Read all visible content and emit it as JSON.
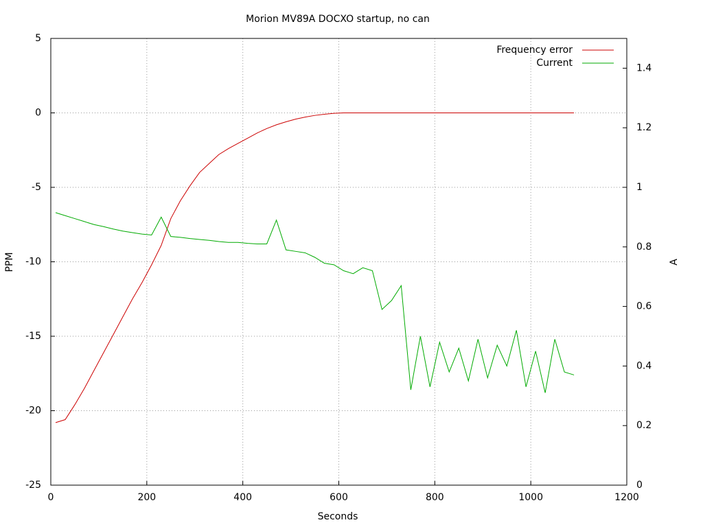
{
  "chart_data": {
    "type": "line",
    "title": "Morion MV89A DOCXO startup, no can",
    "x_label": "Seconds",
    "y_label": "PPM",
    "y2_label": "A",
    "x": [
      10,
      30,
      50,
      70,
      90,
      110,
      130,
      150,
      170,
      190,
      210,
      230,
      250,
      270,
      290,
      310,
      330,
      350,
      370,
      390,
      410,
      430,
      450,
      470,
      490,
      510,
      530,
      550,
      570,
      590,
      610,
      630,
      650,
      670,
      690,
      710,
      730,
      750,
      770,
      790,
      810,
      830,
      850,
      870,
      890,
      910,
      930,
      950,
      970,
      990,
      1010,
      1030,
      1050,
      1070,
      1090
    ],
    "series": [
      {
        "name": "Frequency error",
        "color": "#cc0000",
        "axis": "y",
        "values": [
          -20.8,
          -20.6,
          -19.6,
          -18.5,
          -17.3,
          -16.1,
          -14.9,
          -13.7,
          -12.5,
          -11.4,
          -10.2,
          -8.9,
          -7.1,
          -5.9,
          -4.9,
          -4.0,
          -3.4,
          -2.8,
          -2.4,
          -2.05,
          -1.7,
          -1.35,
          -1.05,
          -0.8,
          -0.6,
          -0.42,
          -0.28,
          -0.17,
          -0.09,
          -0.03,
          0,
          0,
          0,
          0,
          0,
          0,
          0,
          0,
          0,
          0,
          0,
          0,
          0,
          0,
          0,
          0,
          0,
          0,
          0,
          0,
          0,
          0,
          0,
          0,
          0
        ]
      },
      {
        "name": "Current",
        "color": "#00aa00",
        "axis": "y2",
        "values": [
          0.915,
          0.905,
          0.895,
          0.885,
          0.875,
          0.868,
          0.86,
          0.853,
          0.848,
          0.843,
          0.84,
          0.9,
          0.835,
          0.832,
          0.828,
          0.825,
          0.822,
          0.818,
          0.815,
          0.815,
          0.812,
          0.81,
          0.81,
          0.89,
          0.79,
          0.785,
          0.78,
          0.765,
          0.745,
          0.74,
          0.72,
          0.71,
          0.73,
          0.72,
          0.59,
          0.62,
          0.67,
          0.32,
          0.5,
          0.33,
          0.48,
          0.38,
          0.46,
          0.35,
          0.49,
          0.36,
          0.47,
          0.4,
          0.52,
          0.33,
          0.45,
          0.31,
          0.49,
          0.38,
          0.37
        ]
      }
    ],
    "xlim": [
      0,
      1200
    ],
    "xticks": [
      0,
      200,
      400,
      600,
      800,
      1000,
      1200
    ],
    "ylim": [
      -25,
      5
    ],
    "yticks": [
      -25,
      -20,
      -15,
      -10,
      -5,
      0,
      5
    ],
    "y2lim": [
      0,
      1.5
    ],
    "y2ticks": [
      0,
      0.2,
      0.4,
      0.6,
      0.8,
      1,
      1.2,
      1.4
    ],
    "grid": true,
    "legend": "top-right"
  }
}
